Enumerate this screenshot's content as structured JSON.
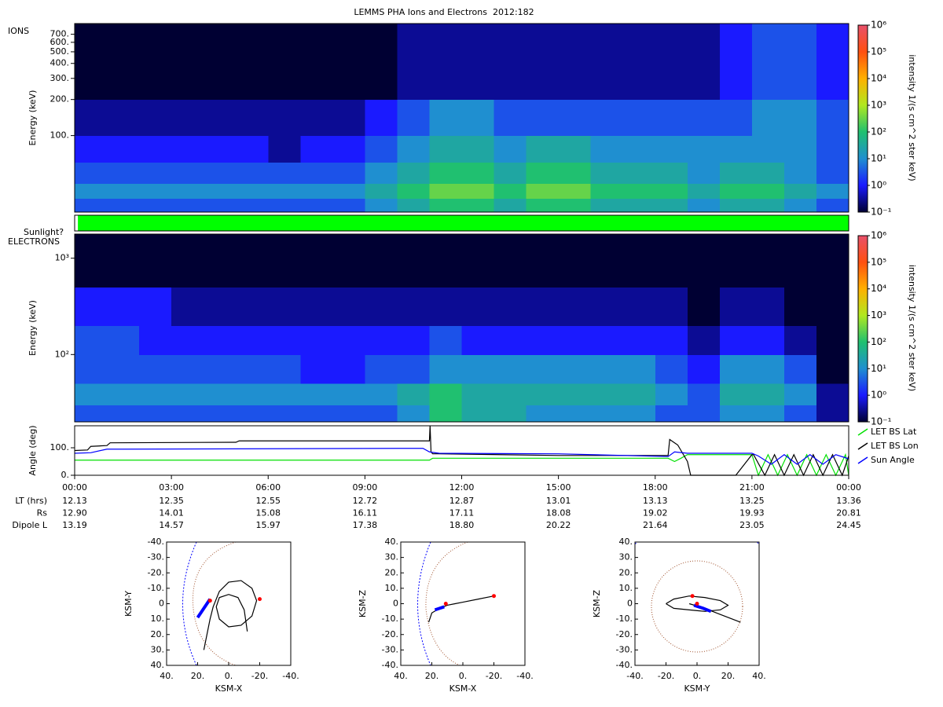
{
  "title": "LEMMS PHA Ions and Electrons  2012:182",
  "chart_data": [
    {
      "type": "heatmap",
      "label": "IONS",
      "ylabel": "Energy (keV)",
      "log_y": true,
      "xlim": [
        0,
        24
      ],
      "ylim": [
        23,
        860
      ],
      "yticks": [
        {
          "value": 100,
          "label": "100."
        },
        {
          "value": 200,
          "label": "200."
        },
        {
          "value": 300,
          "label": "300."
        },
        {
          "value": 400,
          "label": "400."
        },
        {
          "value": 500,
          "label": "500."
        },
        {
          "value": 600,
          "label": "600."
        },
        {
          "value": 700,
          "label": "700."
        }
      ],
      "x_bins": [
        0,
        1,
        2,
        3,
        4,
        5,
        6,
        7,
        8,
        9,
        10,
        11,
        12,
        13,
        14,
        15,
        16,
        17,
        18,
        19,
        20,
        21,
        22,
        23,
        24
      ],
      "y_bins": [
        23,
        30,
        40,
        60,
        100,
        200,
        860
      ],
      "values": [
        [
          3,
          3,
          3,
          3,
          3,
          3,
          3,
          3,
          3,
          10,
          30,
          100,
          100,
          30,
          100,
          100,
          30,
          30,
          30,
          10,
          30,
          30,
          10,
          3
        ],
        [
          10,
          10,
          10,
          10,
          10,
          10,
          10,
          10,
          10,
          30,
          100,
          300,
          300,
          100,
          300,
          300,
          100,
          100,
          100,
          30,
          100,
          100,
          30,
          10
        ],
        [
          3,
          3,
          3,
          3,
          3,
          3,
          3,
          3,
          3,
          10,
          30,
          100,
          100,
          30,
          100,
          100,
          30,
          30,
          30,
          10,
          30,
          30,
          10,
          3
        ],
        [
          1,
          1,
          1,
          1,
          1,
          1,
          0.3,
          1,
          1,
          3,
          10,
          30,
          30,
          10,
          30,
          30,
          10,
          10,
          10,
          10,
          10,
          10,
          10,
          3
        ],
        [
          0.3,
          0.3,
          0.3,
          0.3,
          0.3,
          0.3,
          0.3,
          0.3,
          0.3,
          1,
          3,
          10,
          10,
          3,
          3,
          3,
          3,
          3,
          3,
          3,
          3,
          10,
          10,
          3
        ],
        [
          0.1,
          0.1,
          0.1,
          0.1,
          0.1,
          0.1,
          0.1,
          0.1,
          0.1,
          0.1,
          0.3,
          0.3,
          0.3,
          0.3,
          0.3,
          0.3,
          0.3,
          0.3,
          0.3,
          0.3,
          1,
          3,
          3,
          1
        ]
      ],
      "colorbar": {
        "label": "intensity 1/(s cm^2 ster keV)",
        "log": true,
        "lim": [
          0.1,
          1000000
        ],
        "ticks": [
          {
            "value": 0.1,
            "label": "10⁻¹"
          },
          {
            "value": 1,
            "label": "10⁰"
          },
          {
            "value": 10,
            "label": "10¹"
          },
          {
            "value": 100,
            "label": "10²"
          },
          {
            "value": 1000,
            "label": "10³"
          },
          {
            "value": 10000,
            "label": "10⁴"
          },
          {
            "value": 100000,
            "label": "10⁵"
          },
          {
            "value": 1000000,
            "label": "10⁶"
          }
        ]
      }
    },
    {
      "type": "strip",
      "label": "Sunlight?",
      "xlim": [
        0,
        24
      ],
      "x_bins": [
        0,
        0.1,
        24
      ],
      "colors": [
        "#ffffff",
        "#00ff00"
      ]
    },
    {
      "type": "heatmap",
      "label": "ELECTRONS",
      "ylabel": "Energy (keV)",
      "log_y": true,
      "xlim": [
        0,
        24
      ],
      "ylim": [
        20,
        1780
      ],
      "yticks": [
        {
          "value": 100,
          "label": "10²"
        },
        {
          "value": 1000,
          "label": "10³"
        }
      ],
      "x_bins": [
        0,
        1,
        2,
        3,
        4,
        5,
        6,
        7,
        8,
        9,
        10,
        11,
        12,
        13,
        14,
        15,
        16,
        17,
        18,
        19,
        20,
        21,
        22,
        23,
        24
      ],
      "y_bins": [
        20,
        30,
        50,
        100,
        200,
        500,
        1780
      ],
      "values": [
        [
          3,
          3,
          3,
          3,
          3,
          3,
          3,
          3,
          3,
          3,
          10,
          100,
          30,
          30,
          10,
          10,
          10,
          10,
          3,
          3,
          10,
          10,
          3,
          0.3
        ],
        [
          10,
          10,
          10,
          10,
          10,
          10,
          10,
          10,
          10,
          10,
          30,
          100,
          30,
          30,
          30,
          30,
          30,
          30,
          10,
          3,
          30,
          30,
          10,
          0.3
        ],
        [
          3,
          3,
          3,
          3,
          3,
          3,
          3,
          1,
          1,
          3,
          3,
          10,
          10,
          10,
          10,
          10,
          10,
          10,
          3,
          1,
          10,
          10,
          3,
          0.1
        ],
        [
          3,
          3,
          1,
          1,
          1,
          1,
          1,
          1,
          1,
          1,
          1,
          3,
          1,
          1,
          1,
          1,
          1,
          1,
          1,
          0.3,
          1,
          1,
          0.3,
          0.1
        ],
        [
          1,
          1,
          1,
          0.3,
          0.3,
          0.3,
          0.3,
          0.3,
          0.3,
          0.3,
          0.3,
          0.3,
          0.3,
          0.3,
          0.3,
          0.3,
          0.3,
          0.3,
          0.3,
          0.1,
          0.3,
          0.3,
          0.1,
          0.1
        ],
        [
          0.1,
          0.1,
          0.1,
          0.1,
          0.1,
          0.1,
          0.1,
          0.1,
          0.1,
          0.1,
          0.1,
          0.1,
          0.1,
          0.1,
          0.1,
          0.1,
          0.1,
          0.1,
          0.1,
          0.1,
          0.1,
          0.1,
          0.1,
          0.1
        ]
      ],
      "colorbar": {
        "label": "intensity 1/(s cm^2 ster keV)",
        "log": true,
        "lim": [
          0.1,
          1000000
        ],
        "ticks": [
          {
            "value": 0.1,
            "label": "10⁻¹"
          },
          {
            "value": 1,
            "label": "10⁰"
          },
          {
            "value": 10,
            "label": "10¹"
          },
          {
            "value": 100,
            "label": "10²"
          },
          {
            "value": 1000,
            "label": "10³"
          },
          {
            "value": 10000,
            "label": "10⁴"
          },
          {
            "value": 100000,
            "label": "10⁵"
          },
          {
            "value": 1000000,
            "label": "10⁶"
          }
        ]
      }
    },
    {
      "type": "line",
      "ylabel": "Angle (deg)",
      "xlim": [
        0,
        24
      ],
      "ylim": [
        0,
        180
      ],
      "yticks": [
        {
          "value": 0,
          "label": "0."
        },
        {
          "value": 100,
          "label": "100."
        }
      ],
      "xticks": [
        {
          "value": 0,
          "label": "00:00"
        },
        {
          "value": 3,
          "label": "03:00"
        },
        {
          "value": 6,
          "label": "06:00"
        },
        {
          "value": 9,
          "label": "09:00"
        },
        {
          "value": 12,
          "label": "12:00"
        },
        {
          "value": 15,
          "label": "15:00"
        },
        {
          "value": 18,
          "label": "18:00"
        },
        {
          "value": 21,
          "label": "21:00"
        },
        {
          "value": 24,
          "label": "00:00"
        }
      ],
      "legend": "right",
      "series": [
        {
          "name": "LET BS Lat",
          "color": "#00e000",
          "x": [
            0,
            11,
            11.1,
            18.4,
            18.6,
            18.8,
            19,
            21,
            21.2,
            21.5,
            21.8,
            22.1,
            22.4,
            22.7,
            23,
            23.3,
            23.6,
            23.9,
            24
          ],
          "values": [
            55,
            55,
            62,
            62,
            50,
            62,
            75,
            75,
            0,
            75,
            0,
            75,
            0,
            75,
            0,
            75,
            0,
            75,
            0
          ]
        },
        {
          "name": "LET BS Lon",
          "color": "#000000",
          "x": [
            0,
            0.4,
            0.5,
            1,
            1.1,
            5,
            5.1,
            11,
            11.02,
            11.05,
            11.1,
            11.3,
            15,
            18.4,
            18.45,
            18.7,
            19,
            19.1,
            20.5,
            21,
            21.05,
            21.4,
            21.7,
            22,
            22.3,
            22.6,
            22.9,
            23.2,
            23.5,
            23.8,
            24
          ],
          "values": [
            90,
            92,
            105,
            108,
            118,
            120,
            125,
            125,
            180,
            85,
            78,
            78,
            72,
            72,
            130,
            110,
            50,
            0,
            0,
            75,
            75,
            0,
            75,
            0,
            75,
            0,
            75,
            0,
            75,
            0,
            70
          ]
        },
        {
          "name": "Sun Angle",
          "color": "#0000ff",
          "x": [
            0,
            0.5,
            1,
            1.5,
            10.8,
            11,
            11.3,
            15,
            18.4,
            18.6,
            19,
            21,
            21.2,
            21.6,
            22,
            22.4,
            22.8,
            23.2,
            23.6,
            24
          ],
          "values": [
            80,
            82,
            95,
            95,
            98,
            85,
            80,
            78,
            68,
            85,
            80,
            80,
            70,
            40,
            75,
            40,
            75,
            40,
            75,
            60
          ]
        }
      ]
    },
    {
      "type": "orbit",
      "xlabel": "KSM-X",
      "ylabel": "KSM-Y",
      "xlim": [
        40,
        -40
      ],
      "ylim": [
        40,
        -40
      ],
      "xticks": [
        {
          "value": 40,
          "label": "40."
        },
        {
          "value": 20,
          "label": "20."
        },
        {
          "value": 0,
          "label": "0."
        },
        {
          "value": -20,
          "label": "-20."
        },
        {
          "value": -40,
          "label": "-40."
        }
      ],
      "yticks": [
        {
          "value": -40,
          "label": "-40."
        },
        {
          "value": -30,
          "label": "-30."
        },
        {
          "value": -20,
          "label": "-20."
        },
        {
          "value": -10,
          "label": "-10."
        },
        0,
        {
          "value": 10,
          "label": "10."
        },
        {
          "value": 20,
          "label": "20."
        },
        {
          "value": 30,
          "label": "30."
        },
        {
          "value": 40,
          "label": "40."
        }
      ],
      "series": [
        {
          "color": "#000000",
          "x": [
            16,
            14,
            12,
            10,
            6,
            0,
            -8,
            -15,
            -18,
            -15,
            -8,
            0,
            6,
            8,
            6,
            0,
            -6,
            -10,
            -12
          ],
          "values": [
            30,
            20,
            10,
            2,
            -8,
            -14,
            -15,
            -10,
            -2,
            8,
            14,
            15,
            10,
            2,
            -4,
            -6,
            -4,
            4,
            18
          ]
        },
        {
          "color": "#0000ff",
          "x": [
            20,
            18,
            16,
            14,
            12
          ],
          "values": [
            9,
            6,
            3,
            0,
            -3
          ]
        }
      ],
      "markers": {
        "color": "#ff0000",
        "x": [
          -20,
          12
        ],
        "y": [
          -3,
          -2
        ]
      }
    },
    {
      "type": "orbit",
      "xlabel": "KSM-X",
      "ylabel": "KSM-Z",
      "xlim": [
        40,
        -40
      ],
      "ylim": [
        -40,
        40
      ],
      "xticks": [
        {
          "value": 40,
          "label": "40."
        },
        {
          "value": 20,
          "label": "20."
        },
        {
          "value": 0,
          "label": "0."
        },
        {
          "value": -20,
          "label": "-20."
        },
        {
          "value": -40,
          "label": "-40."
        }
      ],
      "yticks": [
        {
          "value": 40,
          "label": "40."
        },
        {
          "value": 30,
          "label": "30."
        },
        {
          "value": 20,
          "label": "20."
        },
        {
          "value": 10,
          "label": "10."
        },
        0,
        {
          "value": -10,
          "label": "-10."
        },
        {
          "value": -20,
          "label": "-20."
        },
        {
          "value": -30,
          "label": "-30."
        },
        {
          "value": -40,
          "label": "-40."
        }
      ],
      "series": [
        {
          "color": "#000000",
          "x": [
            22,
            20,
            15,
            10,
            5,
            0,
            -10,
            -20
          ],
          "values": [
            -12,
            -6,
            -3,
            -1,
            0,
            1,
            3,
            5
          ]
        },
        {
          "color": "#0000ff",
          "x": [
            18,
            15,
            12
          ],
          "values": [
            -4,
            -3,
            -2
          ]
        }
      ],
      "markers": {
        "color": "#ff0000",
        "x": [
          -20,
          11
        ],
        "y": [
          5,
          0
        ]
      }
    },
    {
      "type": "orbit",
      "xlabel": "KSM-Y",
      "ylabel": "KSM-Z",
      "xlim": [
        -40,
        40
      ],
      "ylim": [
        -40,
        40
      ],
      "xticks": [
        {
          "value": -40,
          "label": "-40."
        },
        {
          "value": -20,
          "label": "-20."
        },
        {
          "value": 0,
          "label": "0."
        },
        {
          "value": 20,
          "label": "20."
        },
        {
          "value": 40,
          "label": "40."
        }
      ],
      "yticks": [
        {
          "value": 40,
          "label": "40."
        },
        {
          "value": 30,
          "label": "30."
        },
        {
          "value": 20,
          "label": "20."
        },
        {
          "value": 10,
          "label": "10."
        },
        0,
        {
          "value": -10,
          "label": "-10."
        },
        {
          "value": -20,
          "label": "-20."
        },
        {
          "value": -30,
          "label": "-30."
        },
        {
          "value": -40,
          "label": "-40."
        }
      ],
      "series": [
        {
          "color": "#000000",
          "x": [
            -20,
            -15,
            -5,
            5,
            15,
            20,
            15,
            5,
            -5,
            -15,
            -20
          ],
          "values": [
            0,
            3,
            5,
            4,
            2,
            -1,
            -4,
            -5,
            -4,
            -3,
            0
          ]
        },
        {
          "color": "#000000",
          "x": [
            -5,
            5,
            15,
            28
          ],
          "values": [
            0,
            -3,
            -7,
            -12
          ]
        },
        {
          "color": "#0000ff",
          "x": [
            -2,
            4,
            9
          ],
          "values": [
            -1,
            -3,
            -5
          ]
        }
      ],
      "markers": {
        "color": "#ff0000",
        "x": [
          -3,
          0
        ],
        "y": [
          5,
          0
        ]
      }
    }
  ],
  "ephemeris": {
    "rows": [
      {
        "label": "LT (hrs)",
        "values": [
          "12.13",
          "12.35",
          "12.55",
          "12.72",
          "12.87",
          "13.01",
          "13.13",
          "13.25",
          "13.36"
        ]
      },
      {
        "label": "Rs",
        "values": [
          "12.90",
          "14.01",
          "15.08",
          "16.11",
          "17.11",
          "18.08",
          "19.02",
          "19.93",
          "20.81"
        ]
      },
      {
        "label": "Dipole L",
        "values": [
          "13.19",
          "14.57",
          "15.97",
          "17.38",
          "18.80",
          "20.22",
          "21.64",
          "23.05",
          "24.45"
        ]
      }
    ]
  }
}
